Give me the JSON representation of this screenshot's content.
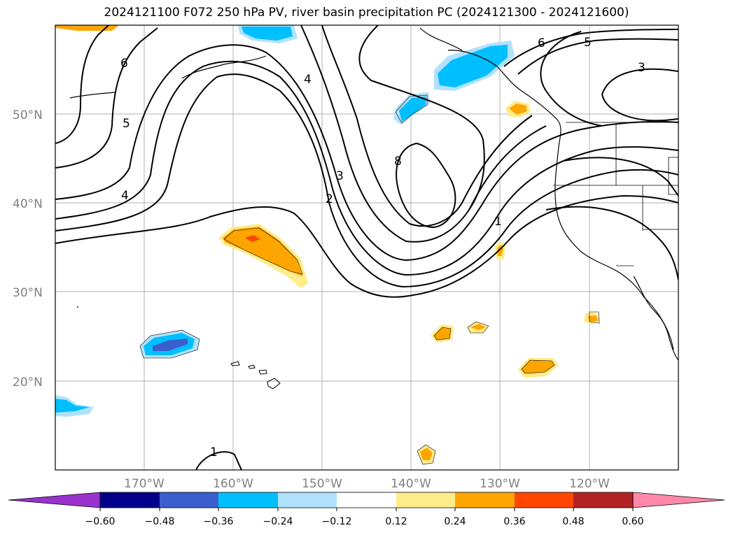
{
  "title": "2024121100 F072 250 hPa PV, river basin precipitation PC (2024121300 - 2024121600)",
  "map": {
    "lon_range": [
      -180,
      -110
    ],
    "lat_range": [
      10,
      60
    ],
    "lat_labels": [
      "20°N",
      "30°N",
      "40°N",
      "50°N"
    ],
    "lon_labels": [
      "170°W",
      "160°W",
      "150°W",
      "140°W",
      "130°W",
      "120°W"
    ],
    "contour_labels": [
      "6",
      "5",
      "4",
      "4",
      "3",
      "2",
      "8",
      "1",
      "5",
      "6",
      "3",
      "1"
    ],
    "contour_color": "#000000",
    "gridline_color": "#b0b0b0"
  },
  "colorbar": {
    "ticks": [
      "−0.60",
      "−0.48",
      "−0.36",
      "−0.24",
      "−0.12",
      "0.12",
      "0.24",
      "0.36",
      "0.48",
      "0.60"
    ],
    "colors": [
      "#9932cc",
      "#00008b",
      "#3a5fcd",
      "#00bfff",
      "#b0e2ff",
      "#ffffff",
      "#ffec8b",
      "#ffa500",
      "#ff4500",
      "#b22222",
      "#ff88aa"
    ]
  }
}
